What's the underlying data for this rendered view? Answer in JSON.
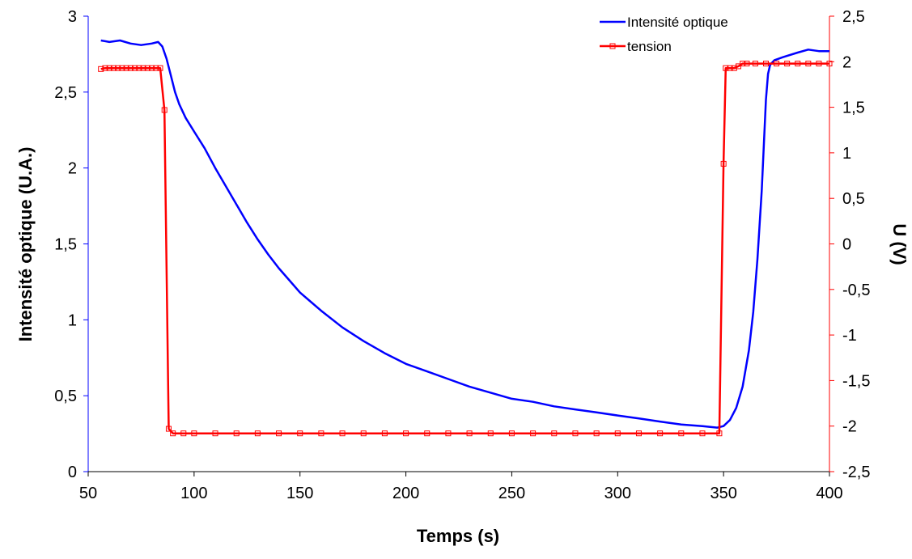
{
  "chart_data": {
    "type": "line",
    "title": "",
    "xlabel": "Temps (s)",
    "ylabel": "Intensité optique (U.A.)",
    "y2label": "U (V)",
    "xlim": [
      50,
      400
    ],
    "ylim": [
      0,
      3
    ],
    "y2lim": [
      -2.5,
      2.5
    ],
    "x_ticks": [
      "50",
      "100",
      "150",
      "200",
      "250",
      "300",
      "350",
      "400"
    ],
    "y_ticks": [
      "0",
      "0,5",
      "1",
      "1,5",
      "2",
      "2,5",
      "3"
    ],
    "y2_ticks": [
      "-2,5",
      "-2",
      "-1,5",
      "-1",
      "-0,5",
      "0",
      "0,5",
      "1",
      "1,5",
      "2",
      "2,5"
    ],
    "grid": false,
    "legend_position": "top-right",
    "series": [
      {
        "name": "Intensité optique",
        "axis": "left",
        "color": "#0000ff",
        "marker": "none",
        "x": [
          56,
          60,
          65,
          70,
          75,
          80,
          83,
          85,
          87,
          89,
          91,
          93,
          96,
          100,
          105,
          110,
          115,
          120,
          125,
          130,
          135,
          140,
          145,
          150,
          160,
          170,
          180,
          190,
          200,
          210,
          220,
          230,
          240,
          250,
          260,
          270,
          280,
          290,
          300,
          310,
          320,
          330,
          340,
          347,
          350,
          353,
          356,
          359,
          362,
          364,
          366,
          368,
          369,
          370,
          371,
          372,
          374,
          378,
          385,
          390,
          395,
          400
        ],
        "y": [
          2.84,
          2.83,
          2.84,
          2.82,
          2.81,
          2.82,
          2.83,
          2.8,
          2.72,
          2.61,
          2.5,
          2.42,
          2.33,
          2.24,
          2.13,
          2.0,
          1.88,
          1.76,
          1.64,
          1.53,
          1.43,
          1.34,
          1.26,
          1.18,
          1.06,
          0.95,
          0.86,
          0.78,
          0.71,
          0.66,
          0.61,
          0.56,
          0.52,
          0.48,
          0.46,
          0.43,
          0.41,
          0.39,
          0.37,
          0.35,
          0.33,
          0.31,
          0.3,
          0.29,
          0.3,
          0.34,
          0.42,
          0.56,
          0.8,
          1.05,
          1.4,
          1.85,
          2.15,
          2.45,
          2.62,
          2.68,
          2.71,
          2.73,
          2.76,
          2.78,
          2.77,
          2.77
        ]
      },
      {
        "name": "tension",
        "axis": "right",
        "color": "#ff0000",
        "marker": "square",
        "x": [
          56,
          58,
          60,
          62,
          64,
          66,
          68,
          70,
          72,
          74,
          76,
          78,
          80,
          82,
          84,
          86,
          88,
          90,
          95,
          100,
          110,
          120,
          130,
          140,
          150,
          160,
          170,
          180,
          190,
          200,
          210,
          220,
          230,
          240,
          250,
          260,
          270,
          280,
          290,
          300,
          310,
          320,
          330,
          340,
          348,
          350,
          351,
          353,
          355,
          357,
          359,
          361,
          365,
          370,
          375,
          380,
          385,
          390,
          395,
          400
        ],
        "y": [
          1.92,
          1.93,
          1.93,
          1.93,
          1.93,
          1.93,
          1.93,
          1.93,
          1.93,
          1.93,
          1.93,
          1.93,
          1.93,
          1.93,
          1.93,
          1.47,
          -2.03,
          -2.08,
          -2.08,
          -2.08,
          -2.08,
          -2.08,
          -2.08,
          -2.08,
          -2.08,
          -2.08,
          -2.08,
          -2.08,
          -2.08,
          -2.08,
          -2.08,
          -2.08,
          -2.08,
          -2.08,
          -2.08,
          -2.08,
          -2.08,
          -2.08,
          -2.08,
          -2.08,
          -2.08,
          -2.08,
          -2.08,
          -2.08,
          -2.08,
          0.88,
          1.93,
          1.93,
          1.93,
          1.95,
          1.98,
          1.98,
          1.98,
          1.98,
          1.98,
          1.98,
          1.98,
          1.98,
          1.98,
          1.98
        ]
      }
    ]
  }
}
